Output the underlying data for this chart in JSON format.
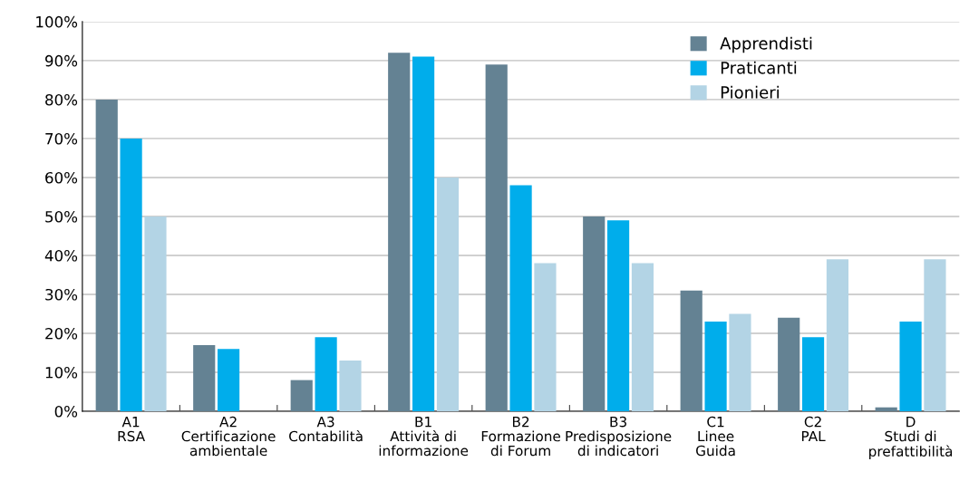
{
  "chart_data": {
    "type": "bar",
    "categories": [
      "A1\nRSA",
      "A2\nCertificazione\nambientale",
      "A3\nContabilità",
      "B1\nAttività di\ninformazione",
      "B2\nFormazione\ndi Forum",
      "B3\nPredisposizione\ndi indicatori",
      "C1\nLinee\nGuida",
      "C2\nPAL",
      "D\nStudi di\nprefattibilità"
    ],
    "series": [
      {
        "name": "Apprendisti",
        "color": "#648293",
        "values": [
          80,
          17,
          8,
          92,
          89,
          50,
          31,
          24,
          1
        ]
      },
      {
        "name": "Praticanti",
        "color": "#00adeb",
        "values": [
          70,
          16,
          19,
          91,
          58,
          49,
          23,
          19,
          23
        ]
      },
      {
        "name": "Pionieri",
        "color": "#b3d4e5",
        "values": [
          50,
          0,
          13,
          60,
          38,
          38,
          25,
          39,
          39
        ]
      }
    ],
    "ylim": [
      0,
      100
    ],
    "yticks": [
      {
        "value": 0,
        "label": "0%"
      },
      {
        "value": 10,
        "label": "10%"
      },
      {
        "value": 20,
        "label": "20%"
      },
      {
        "value": 30,
        "label": "30%"
      },
      {
        "value": 40,
        "label": "40%"
      },
      {
        "value": 50,
        "label": "50%"
      },
      {
        "value": 60,
        "label": "60%"
      },
      {
        "value": 70,
        "label": "70%"
      },
      {
        "value": 80,
        "label": "80%"
      },
      {
        "value": 90,
        "label": "90%"
      },
      {
        "value": 100,
        "label": "100%"
      }
    ],
    "grid": "y",
    "legend": "top right"
  }
}
